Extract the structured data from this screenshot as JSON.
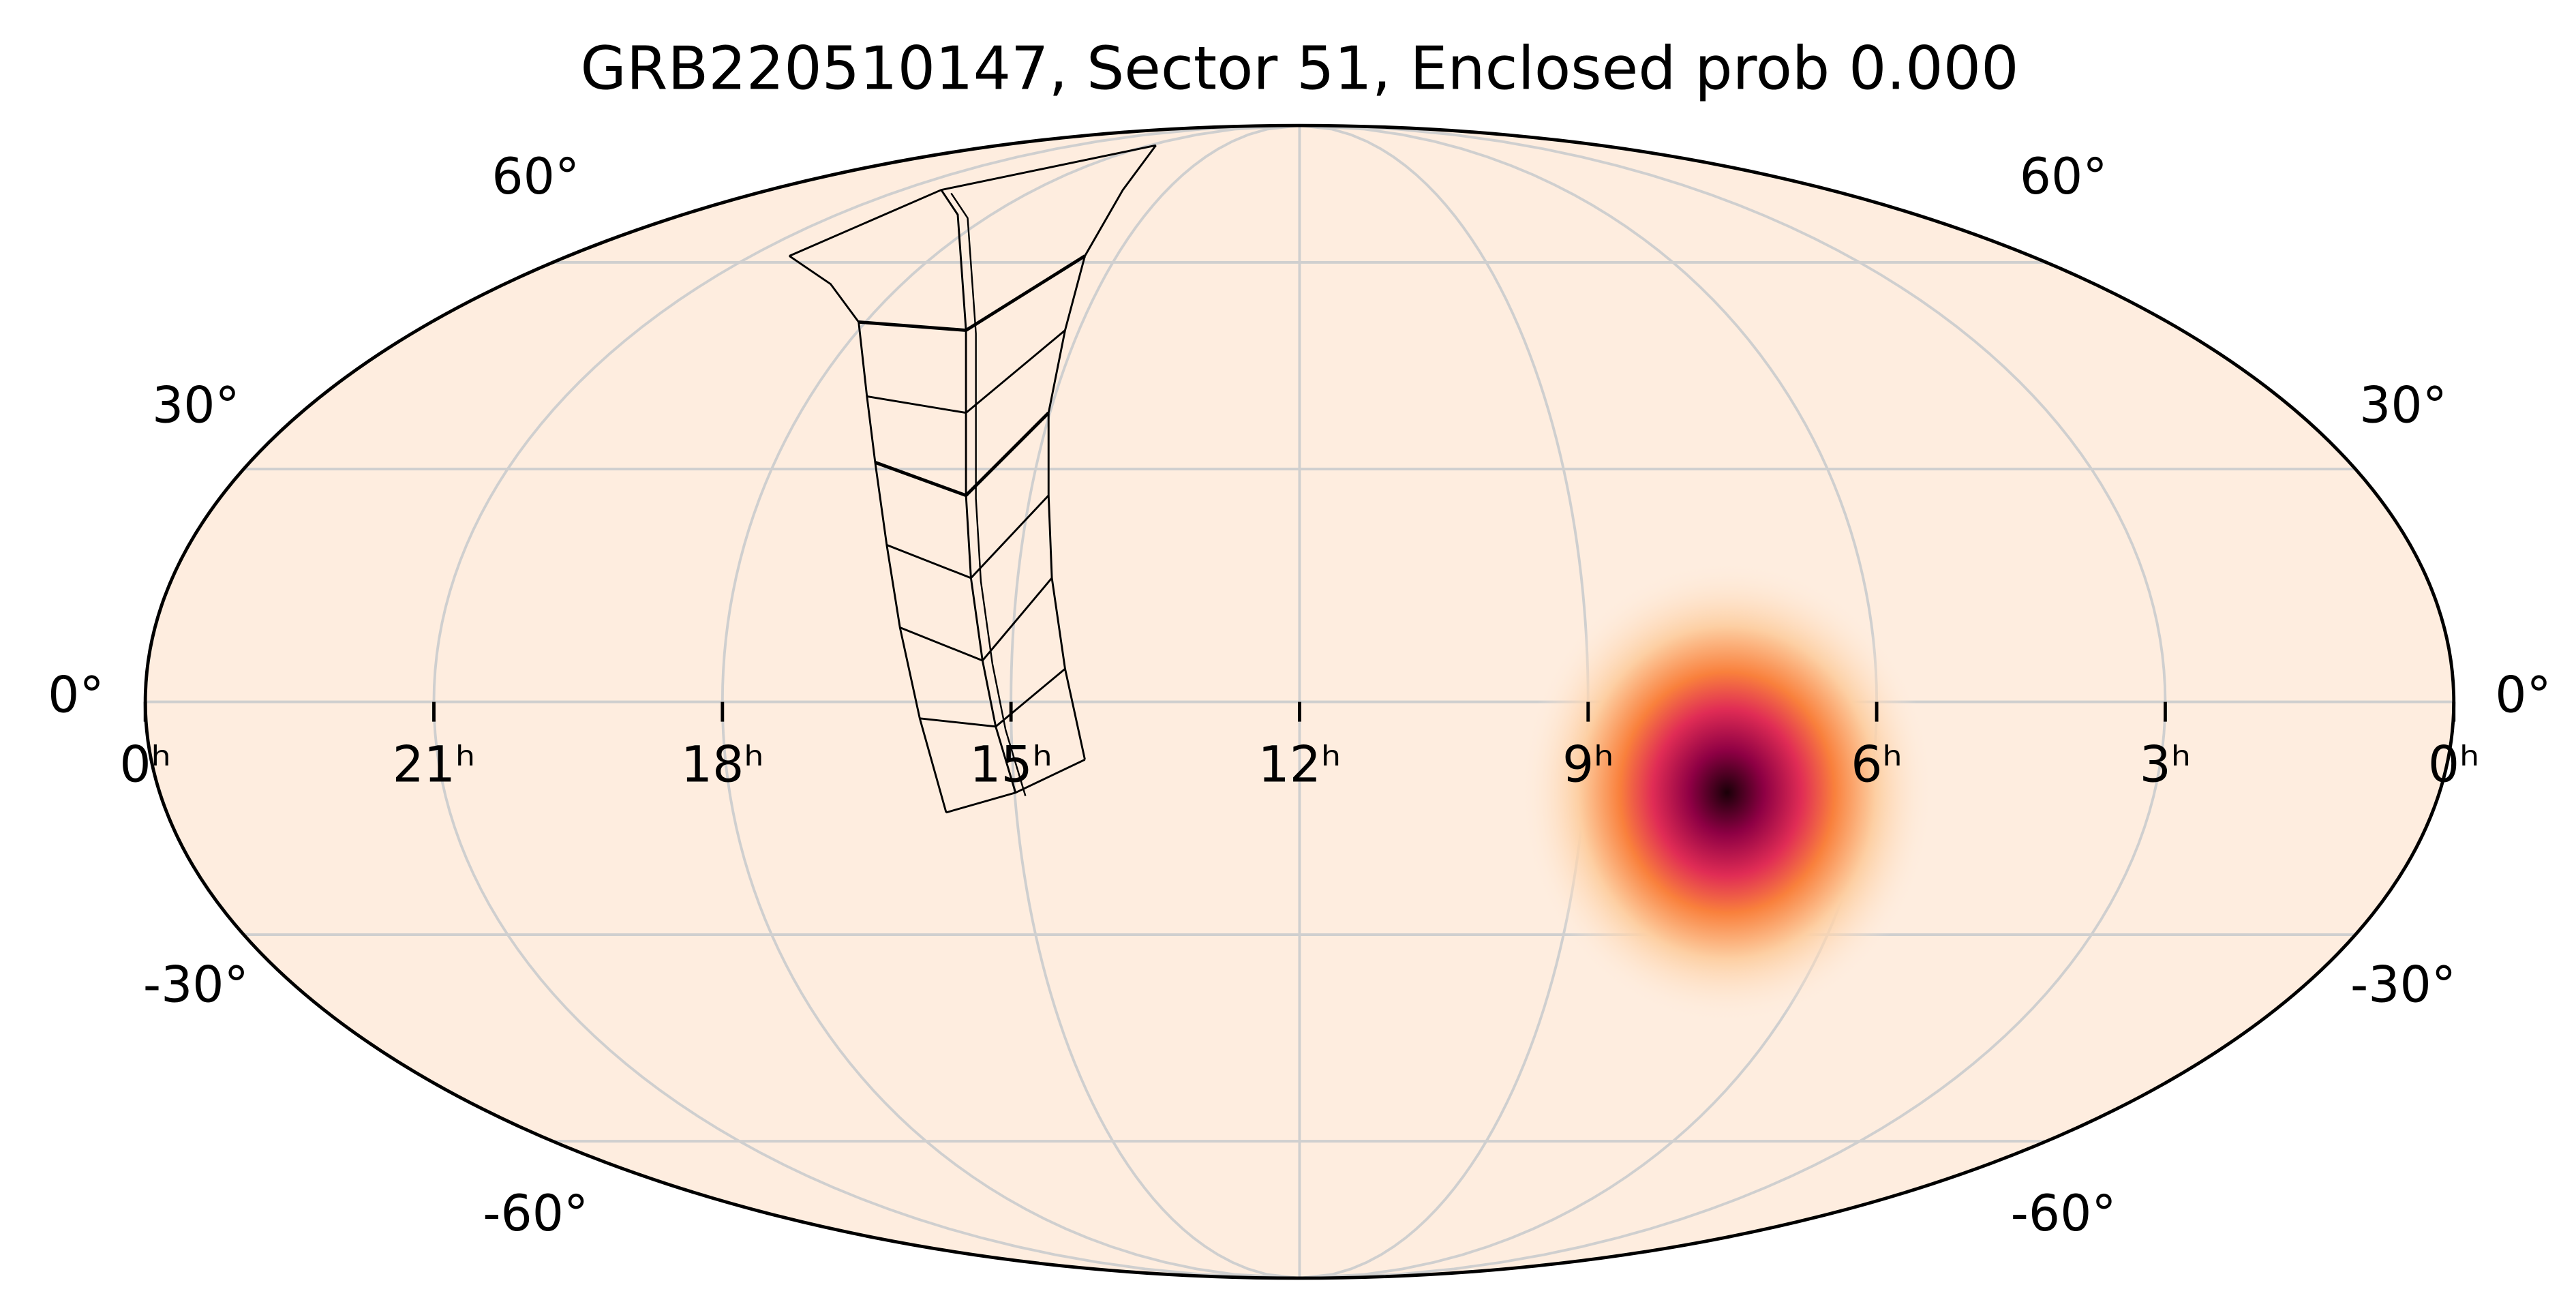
{
  "chart_data": {
    "type": "mollweide",
    "title": "GRB220510147, Sector 51, Enclosed prob 0.000",
    "xlim": [
      24,
      0
    ],
    "xticks": [
      {
        "value": 24,
        "label": "0ʰ"
      },
      {
        "value": 21,
        "label": "21ʰ"
      },
      {
        "value": 18,
        "label": "18ʰ"
      },
      {
        "value": 15,
        "label": "15ʰ"
      },
      {
        "value": 12,
        "label": "12ʰ"
      },
      {
        "value": 9,
        "label": "9ʰ"
      },
      {
        "value": 6,
        "label": "6ʰ"
      },
      {
        "value": 3,
        "label": "3ʰ"
      },
      {
        "value": 0,
        "label": "0ʰ"
      }
    ],
    "ylim": [
      -90,
      90
    ],
    "yticks": [
      {
        "value": 60,
        "label": "60°"
      },
      {
        "value": 30,
        "label": "30°"
      },
      {
        "value": 0,
        "label": "0°"
      },
      {
        "value": -30,
        "label": "-30°"
      },
      {
        "value": -60,
        "label": "-60°"
      }
    ],
    "grid": true,
    "peak": {
      "ra": 7.5,
      "dec": -11.5
    }
  }
}
